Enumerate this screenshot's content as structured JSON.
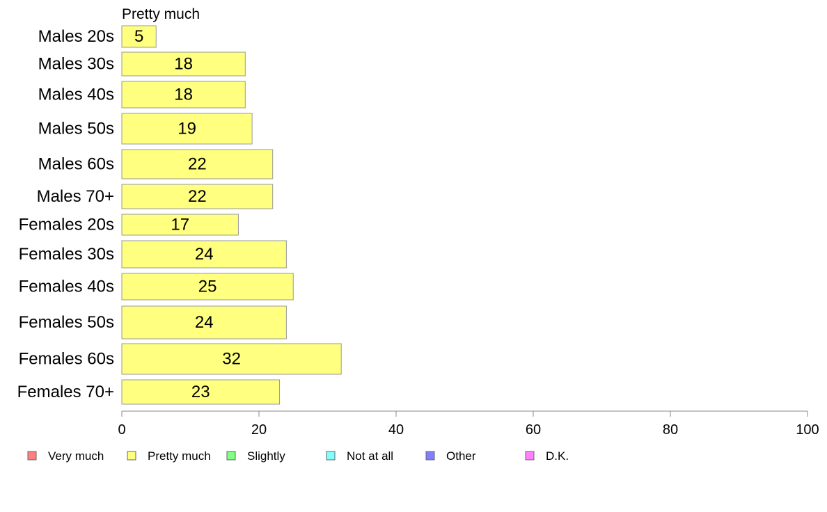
{
  "chart_data": {
    "type": "bar",
    "orientation": "horizontal",
    "stacked": true,
    "series_title": "Pretty much",
    "categories": [
      "Males 20s",
      "Males 30s",
      "Males 40s",
      "Males 50s",
      "Males 60s",
      "Males 70+",
      "Females 20s",
      "Females 30s",
      "Females 40s",
      "Females 50s",
      "Females 60s",
      "Females 70+"
    ],
    "series": [
      {
        "name": "Pretty much",
        "color": "#ffff80",
        "values": [
          5,
          18,
          18,
          19,
          22,
          22,
          17,
          24,
          25,
          24,
          32,
          23
        ]
      }
    ],
    "xlim": [
      0,
      100
    ],
    "xticks": [
      0,
      20,
      40,
      60,
      80,
      100
    ],
    "grid": false,
    "legend": {
      "position": "bottom",
      "items": [
        {
          "label": "Very much",
          "color": "#ff8080"
        },
        {
          "label": "Pretty much",
          "color": "#ffff80"
        },
        {
          "label": "Slightly",
          "color": "#80ff80"
        },
        {
          "label": "Not at all",
          "color": "#80ffff"
        },
        {
          "label": "Other",
          "color": "#8080ff"
        },
        {
          "label": "D.K.",
          "color": "#ff80ff"
        }
      ]
    }
  }
}
